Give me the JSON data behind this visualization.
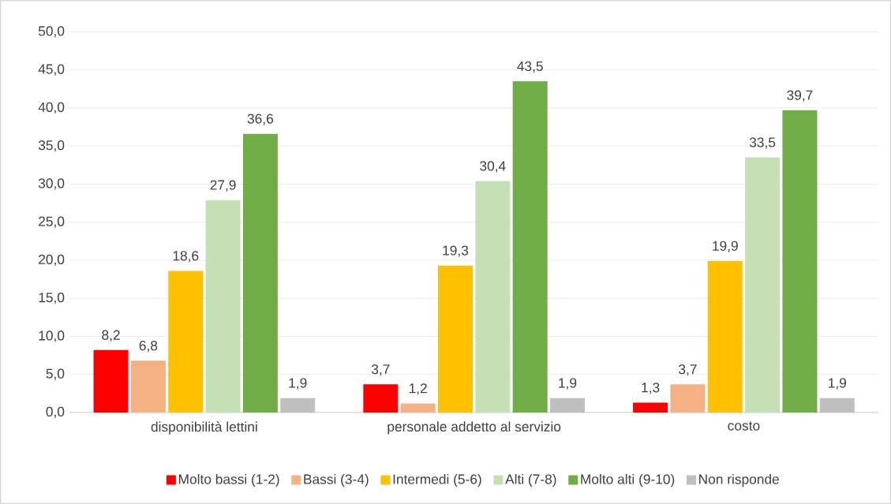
{
  "chart_data": {
    "type": "bar",
    "categories": [
      "disponibilità lettini",
      "personale addetto al servizio",
      "costo"
    ],
    "series": [
      {
        "name": "Molto bassi (1-2)",
        "color": "#ff0000",
        "values": [
          8.2,
          3.7,
          1.3
        ],
        "value_labels": [
          "8,2",
          "3,7",
          "1,3"
        ]
      },
      {
        "name": "Bassi (3-4)",
        "color": "#f4b183",
        "values": [
          6.8,
          1.2,
          3.7
        ],
        "value_labels": [
          "6,8",
          "1,2",
          "3,7"
        ]
      },
      {
        "name": "Intermedi (5-6)",
        "color": "#ffc000",
        "values": [
          18.6,
          19.3,
          19.9
        ],
        "value_labels": [
          "18,6",
          "19,3",
          "19,9"
        ]
      },
      {
        "name": "Alti (7-8)",
        "color": "#c5e0b4",
        "values": [
          27.9,
          30.4,
          33.5
        ],
        "value_labels": [
          "27,9",
          "30,4",
          "33,5"
        ]
      },
      {
        "name": "Molto alti (9-10)",
        "color": "#70ad47",
        "values": [
          36.6,
          43.5,
          39.7
        ],
        "value_labels": [
          "36,6",
          "43,5",
          "39,7"
        ]
      },
      {
        "name": "Non risponde",
        "color": "#bfbfbf",
        "values": [
          1.9,
          1.9,
          1.9
        ],
        "value_labels": [
          "1,9",
          "1,9",
          "1,9"
        ]
      }
    ],
    "ylim": [
      0,
      50
    ],
    "yticks": [
      {
        "value": 0,
        "label": "0,0"
      },
      {
        "value": 5,
        "label": "5,0"
      },
      {
        "value": 10,
        "label": "10,0"
      },
      {
        "value": 15,
        "label": "15,0"
      },
      {
        "value": 20,
        "label": "20,0"
      },
      {
        "value": 25,
        "label": "25,0"
      },
      {
        "value": 30,
        "label": "30,0"
      },
      {
        "value": 35,
        "label": "35,0"
      },
      {
        "value": 40,
        "label": "40,0"
      },
      {
        "value": 45,
        "label": "45,0"
      },
      {
        "value": 50,
        "label": "50,0"
      }
    ],
    "grid": "y",
    "legend": "bottom"
  }
}
